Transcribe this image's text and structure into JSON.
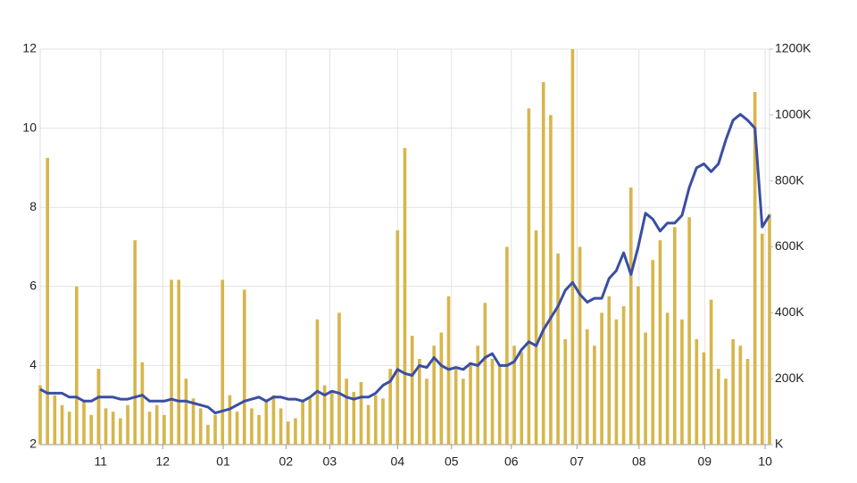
{
  "chart_data": {
    "type": "combo",
    "x": [
      0,
      1,
      2,
      3,
      4,
      5,
      6,
      7,
      8,
      9,
      10,
      11,
      12,
      13,
      14,
      15,
      16,
      17,
      18,
      19,
      20,
      21,
      22,
      23,
      24,
      25,
      26,
      27,
      28,
      29,
      30,
      31,
      32,
      33,
      34,
      35,
      36,
      37,
      38,
      39,
      40,
      41,
      42,
      43,
      44,
      45,
      46,
      47,
      48,
      49,
      50,
      51,
      52,
      53,
      54,
      55,
      56,
      57,
      58,
      59,
      60,
      61,
      62,
      63,
      64,
      65,
      66,
      67,
      68,
      69,
      70,
      71,
      72,
      73,
      74,
      75,
      76,
      77,
      78,
      79,
      80,
      81,
      82,
      83,
      84,
      85,
      86,
      87,
      88,
      89,
      90,
      91,
      92,
      93,
      94,
      95,
      96,
      97,
      98,
      99,
      100
    ],
    "xlim": [
      0,
      100
    ],
    "xticks": [
      {
        "value": 8.3,
        "label": "11"
      },
      {
        "value": 16.8,
        "label": "12"
      },
      {
        "value": 25.1,
        "label": "01"
      },
      {
        "value": 33.7,
        "label": "02"
      },
      {
        "value": 39.7,
        "label": "03"
      },
      {
        "value": 49.0,
        "label": "04"
      },
      {
        "value": 56.4,
        "label": "05"
      },
      {
        "value": 64.6,
        "label": "06"
      },
      {
        "value": 73.6,
        "label": "07"
      },
      {
        "value": 82.1,
        "label": "08"
      },
      {
        "value": 91.1,
        "label": "09"
      },
      {
        "value": 99.4,
        "label": "10"
      }
    ],
    "ylim": [
      2,
      12
    ],
    "yticks": [
      2,
      4,
      6,
      8,
      10,
      12
    ],
    "y2lim": [
      0,
      1200000
    ],
    "y2ticks": [
      {
        "value": 0,
        "label": "K"
      },
      {
        "value": 200000,
        "label": "200K"
      },
      {
        "value": 400000,
        "label": "400K"
      },
      {
        "value": 600000,
        "label": "600K"
      },
      {
        "value": 800000,
        "label": "800K"
      },
      {
        "value": 1000000,
        "label": "1000K"
      },
      {
        "value": 1200000,
        "label": "1200K"
      }
    ],
    "grid": true,
    "series": [
      {
        "type": "bar",
        "axis": "y2",
        "color": "#d6b64c",
        "values": [
          180000,
          870000,
          150000,
          120000,
          100000,
          480000,
          130000,
          90000,
          230000,
          110000,
          100000,
          80000,
          120000,
          620000,
          250000,
          100000,
          120000,
          90000,
          500000,
          500000,
          200000,
          140000,
          110000,
          60000,
          90000,
          500000,
          150000,
          100000,
          470000,
          110000,
          90000,
          130000,
          150000,
          110000,
          70000,
          80000,
          130000,
          140000,
          380000,
          180000,
          160000,
          400000,
          200000,
          160000,
          190000,
          120000,
          150000,
          140000,
          230000,
          650000,
          900000,
          330000,
          260000,
          200000,
          300000,
          340000,
          450000,
          230000,
          200000,
          250000,
          300000,
          430000,
          260000,
          240000,
          600000,
          300000,
          280000,
          1020000,
          650000,
          1100000,
          1000000,
          580000,
          320000,
          1200000,
          600000,
          350000,
          300000,
          400000,
          450000,
          380000,
          420000,
          780000,
          480000,
          340000,
          560000,
          620000,
          400000,
          660000,
          380000,
          690000,
          320000,
          280000,
          440000,
          230000,
          200000,
          320000,
          300000,
          260000,
          1070000,
          640000,
          700000
        ]
      },
      {
        "type": "line",
        "axis": "y",
        "color": "#3a4ea3",
        "values": [
          3.4,
          3.3,
          3.3,
          3.3,
          3.2,
          3.2,
          3.1,
          3.1,
          3.2,
          3.2,
          3.2,
          3.15,
          3.15,
          3.2,
          3.25,
          3.1,
          3.1,
          3.1,
          3.15,
          3.1,
          3.1,
          3.05,
          3.0,
          2.95,
          2.8,
          2.85,
          2.9,
          3.0,
          3.1,
          3.15,
          3.2,
          3.1,
          3.2,
          3.2,
          3.15,
          3.15,
          3.1,
          3.2,
          3.35,
          3.25,
          3.35,
          3.3,
          3.2,
          3.15,
          3.2,
          3.2,
          3.3,
          3.5,
          3.6,
          3.9,
          3.8,
          3.75,
          4.0,
          3.95,
          4.2,
          4.0,
          3.9,
          3.95,
          3.9,
          4.05,
          4.0,
          4.2,
          4.3,
          4.0,
          4.0,
          4.1,
          4.4,
          4.6,
          4.5,
          4.9,
          5.2,
          5.5,
          5.9,
          6.1,
          5.8,
          5.6,
          5.7,
          5.7,
          6.2,
          6.4,
          6.85,
          6.3,
          7.0,
          7.85,
          7.7,
          7.4,
          7.6,
          7.6,
          7.8,
          8.5,
          9.0,
          9.1,
          8.9,
          9.1,
          9.7,
          10.2,
          10.35,
          10.2,
          10.0,
          7.5,
          7.8
        ]
      }
    ]
  }
}
